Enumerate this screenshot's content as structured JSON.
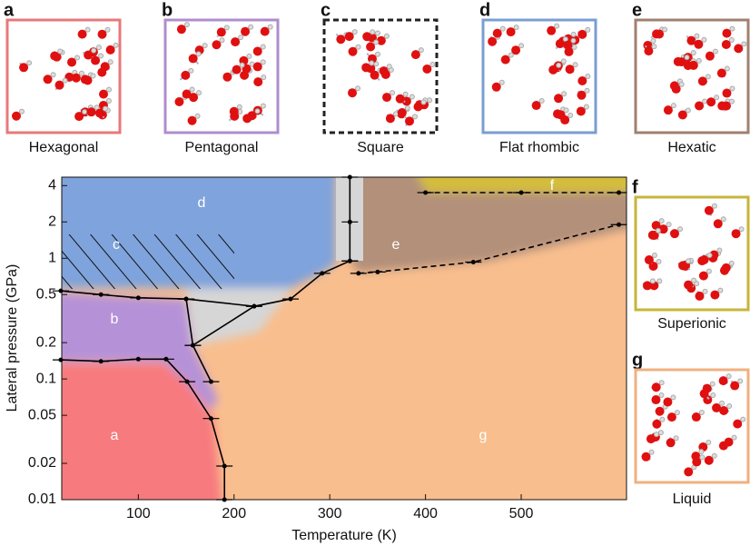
{
  "panels": [
    {
      "letter": "a",
      "caption": "Hexagonal",
      "color": "#e8787a"
    },
    {
      "letter": "b",
      "caption": "Pentagonal",
      "color": "#b08ccc"
    },
    {
      "letter": "c",
      "caption": "Square",
      "color": "#222222"
    },
    {
      "letter": "d",
      "caption": "Flat rhombic",
      "color": "#7b9ed1"
    },
    {
      "letter": "e",
      "caption": "Hexatic",
      "color": "#a08070"
    },
    {
      "letter": "f",
      "caption": "Superionic",
      "color": "#c7b53a"
    },
    {
      "letter": "g",
      "caption": "Liquid",
      "color": "#f0b080"
    }
  ],
  "chart_data": {
    "type": "line",
    "xlabel": "Temperature (K)",
    "ylabel": "Lateral pressure (GPa)",
    "xlim": [
      20,
      610
    ],
    "xticks": [
      100,
      200,
      300,
      400,
      500
    ],
    "ylim": [
      0.01,
      4.7
    ],
    "yticks": [
      0.01,
      0.02,
      0.05,
      0.1,
      0.2,
      0.5,
      1,
      2,
      4
    ],
    "log_y": true,
    "regions": [
      "a",
      "b",
      "c",
      "d",
      "e",
      "f",
      "g"
    ],
    "series": [
      {
        "color": "#000000",
        "dashed": false,
        "x": [
          19,
          61,
          100,
          129,
          151,
          176,
          190,
          190
        ],
        "values": [
          0.144,
          0.14,
          0.146,
          0.146,
          0.095,
          0.047,
          0.019,
          0.01
        ]
      },
      {
        "color": "#000000",
        "dashed": false,
        "x": [
          19,
          61,
          100,
          150,
          221
        ],
        "values": [
          0.537,
          0.5,
          0.47,
          0.46,
          0.4
        ]
      },
      {
        "color": "#000000",
        "dashed": false,
        "x": [
          150,
          157,
          176
        ],
        "values": [
          0.46,
          0.19,
          0.095
        ]
      },
      {
        "color": "#000000",
        "dashed": false,
        "x": [
          157,
          221,
          259,
          292,
          321
        ],
        "values": [
          0.19,
          0.4,
          0.46,
          0.75,
          0.95
        ]
      },
      {
        "color": "#000000",
        "dashed": false,
        "x": [
          321,
          321,
          321
        ],
        "values": [
          0.95,
          2,
          4.7
        ]
      },
      {
        "color": "#000000",
        "dashed": true,
        "x": [
          330,
          350,
          450,
          602
        ],
        "values": [
          0.75,
          0.77,
          0.93,
          1.9
        ]
      },
      {
        "color": "#000000",
        "dashed": true,
        "x": [
          400,
          500,
          602
        ],
        "values": [
          3.5,
          3.5,
          3.5
        ]
      }
    ]
  }
}
